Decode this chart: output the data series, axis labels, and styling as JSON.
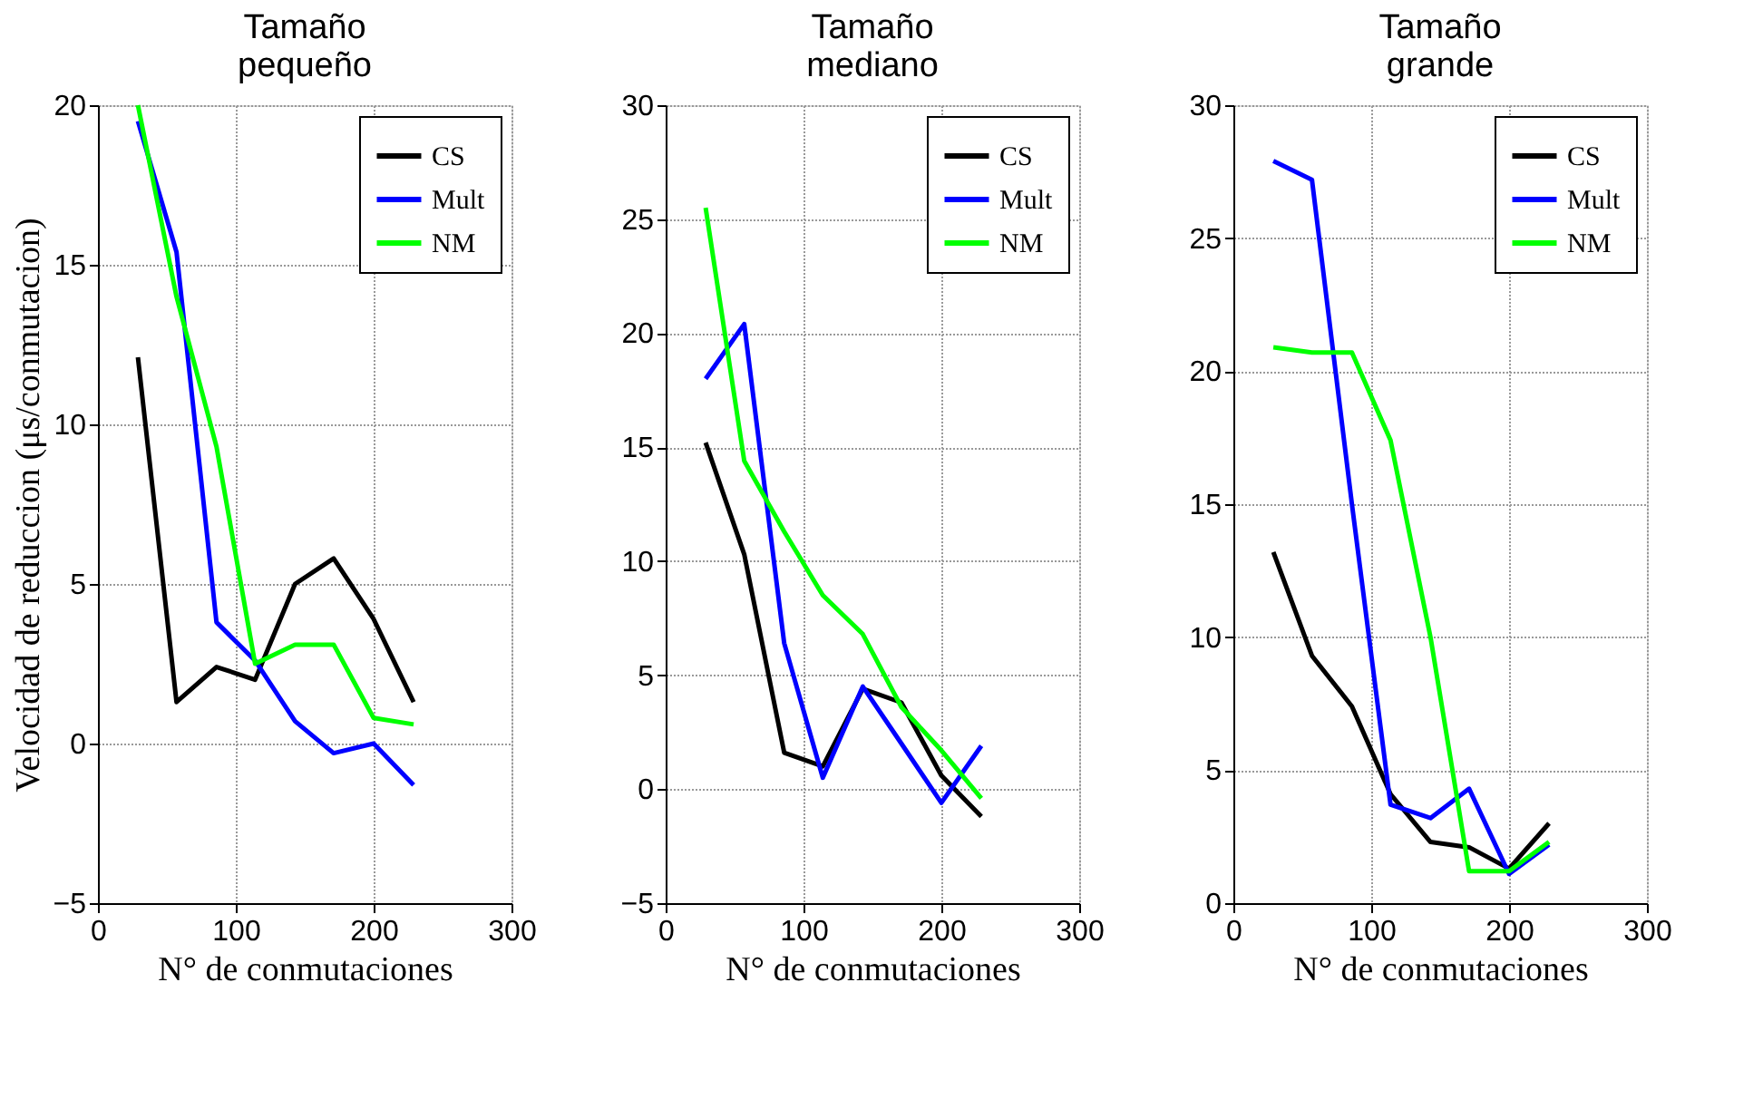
{
  "chart_data": [
    {
      "type": "line",
      "title": "Tamaño pequeño",
      "xlabel": "N° de conmutaciones",
      "ylabel": "Velocidad de reduccion (μs/conmutacion)",
      "x": [
        29,
        57,
        86,
        114,
        143,
        171,
        200,
        229
      ],
      "xlim": [
        0,
        300
      ],
      "xticks": [
        0,
        100,
        200,
        300
      ],
      "ylim": [
        -5,
        20
      ],
      "yticks": [
        -5,
        0,
        5,
        10,
        15,
        20
      ],
      "grid": true,
      "legend": "top right",
      "line_style": "solid",
      "series": [
        {
          "name": "CS",
          "color": "#000000",
          "values": [
            12.1,
            1.3,
            2.4,
            2.0,
            5.0,
            5.8,
            3.9,
            1.3
          ]
        },
        {
          "name": "Mult",
          "color": "#0000ff",
          "values": [
            19.5,
            15.4,
            3.8,
            2.6,
            0.7,
            -0.3,
            0.0,
            -1.3
          ]
        },
        {
          "name": "NM",
          "color": "#00ff00",
          "values": [
            20.0,
            14.0,
            9.3,
            2.5,
            3.1,
            3.1,
            0.8,
            0.6
          ]
        }
      ]
    },
    {
      "type": "line",
      "title": "Tamaño mediano",
      "xlabel": "N° de conmutaciones",
      "x": [
        29,
        57,
        86,
        114,
        143,
        171,
        200,
        229
      ],
      "xlim": [
        0,
        300
      ],
      "xticks": [
        0,
        100,
        200,
        300
      ],
      "ylim": [
        -5,
        30
      ],
      "yticks": [
        -5,
        0,
        5,
        10,
        15,
        20,
        25,
        30
      ],
      "grid": true,
      "legend": "top right",
      "line_style": "solid",
      "series": [
        {
          "name": "CS",
          "color": "#000000",
          "values": [
            15.2,
            10.3,
            1.6,
            1.0,
            4.4,
            3.8,
            0.6,
            -1.2
          ]
        },
        {
          "name": "Mult",
          "color": "#0000ff",
          "values": [
            18.0,
            20.4,
            6.4,
            0.5,
            4.5,
            2.0,
            -0.6,
            1.9
          ]
        },
        {
          "name": "NM",
          "color": "#00ff00",
          "values": [
            25.5,
            14.4,
            11.3,
            8.5,
            6.8,
            3.6,
            1.7,
            -0.4
          ]
        }
      ]
    },
    {
      "type": "line",
      "title": "Tamaño grande",
      "xlabel": "N° de conmutaciones",
      "x": [
        29,
        57,
        86,
        114,
        143,
        171,
        200,
        229
      ],
      "xlim": [
        0,
        300
      ],
      "xticks": [
        0,
        100,
        200,
        300
      ],
      "ylim": [
        0,
        30
      ],
      "yticks": [
        0,
        5,
        10,
        15,
        20,
        25,
        30
      ],
      "grid": true,
      "legend": "top right",
      "line_style": "solid",
      "series": [
        {
          "name": "CS",
          "color": "#000000",
          "values": [
            13.2,
            9.3,
            7.4,
            4.1,
            2.3,
            2.1,
            1.3,
            3.0
          ]
        },
        {
          "name": "Mult",
          "color": "#0000ff",
          "values": [
            27.9,
            27.2,
            15.0,
            3.7,
            3.2,
            4.3,
            1.1,
            2.2
          ]
        },
        {
          "name": "NM",
          "color": "#00ff00",
          "values": [
            20.9,
            20.7,
            20.7,
            17.4,
            10.0,
            1.2,
            1.2,
            2.3
          ]
        }
      ]
    }
  ]
}
